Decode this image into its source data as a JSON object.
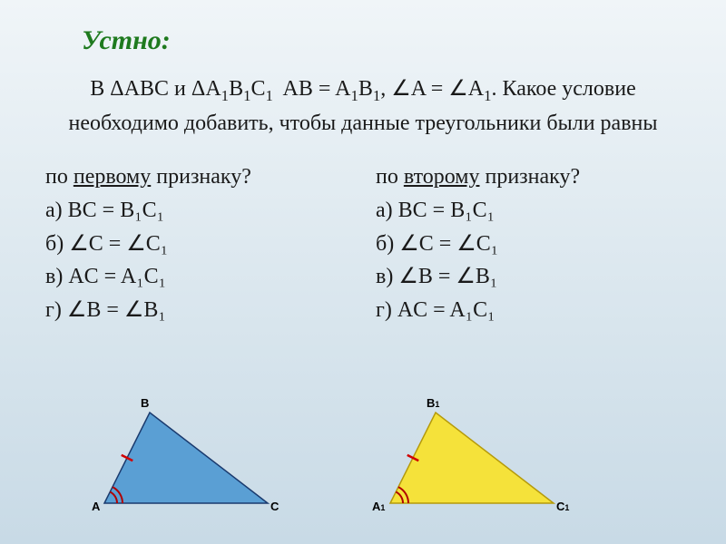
{
  "title": "Устно:",
  "problem_html": "В ΔABC и ΔA₁B₁C₁  AB = A₁B₁, ∠A = ∠A₁. Какое условие необходимо добавить, чтобы данные треугольники были равны",
  "left": {
    "question_pre": "по ",
    "question_word": "первому",
    "question_post": " признаку?",
    "a": "а) BC = B₁C₁",
    "b": "б) ∠C = ∠C₁",
    "c": "в) AC = A₁C₁",
    "d": "г) ∠B = ∠B₁"
  },
  "right": {
    "question_pre": "по ",
    "question_word": "второму",
    "question_post": " признаку?",
    "a": "а) BC = B₁C₁",
    "b": "б) ∠C = ∠C₁",
    "c": "в) ∠B = ∠B₁",
    "d": "г) AC = A₁C₁"
  },
  "triangles": {
    "t1": {
      "fill": "#5a9fd4",
      "stroke": "#1a3a6e",
      "A": [
        115,
        555
      ],
      "B": [
        165,
        455
      ],
      "C": [
        295,
        555
      ],
      "labels": {
        "A": "A",
        "B": "B",
        "C": "C"
      }
    },
    "t2": {
      "fill": "#f5e23a",
      "stroke": "#b59a0b",
      "A": [
        430,
        555
      ],
      "B": [
        480,
        455
      ],
      "C": [
        610,
        555
      ],
      "labels": {
        "A": "A₁",
        "B": "B₁",
        "C": "C₁"
      }
    },
    "tick_color": "#d00000",
    "arc_color": "#b00000"
  }
}
